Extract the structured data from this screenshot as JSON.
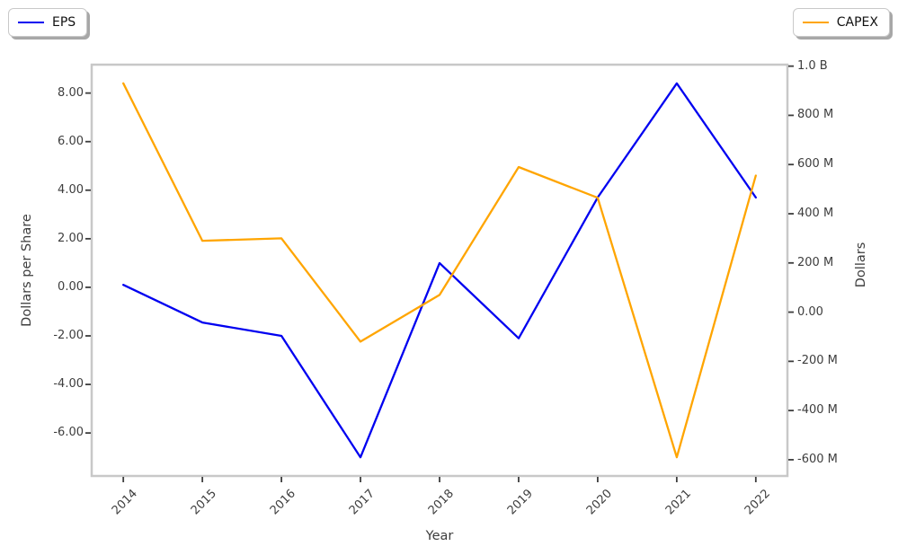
{
  "figure": {
    "background": "#ffffff",
    "frame_color": "#c8c8c8",
    "tick_color": "#3d3d3d",
    "text_color": "#3d3d3d",
    "legends": [
      {
        "label": "EPS",
        "color": "#0000f0",
        "position": "top-left"
      },
      {
        "label": "CAPEX",
        "color": "#ffa500",
        "position": "top-right"
      }
    ]
  },
  "chart_data": {
    "type": "line",
    "title": "",
    "xlabel": "Year",
    "x": [
      2014,
      2015,
      2016,
      2017,
      2018,
      2019,
      2020,
      2021,
      2022
    ],
    "x_tick_labels": [
      "2014",
      "2015",
      "2016",
      "2017",
      "2018",
      "2019",
      "2020",
      "2021",
      "2022"
    ],
    "x_range": [
      2013.6,
      2022.4
    ],
    "series": [
      {
        "name": "EPS",
        "axis": "left",
        "color": "#0000f0",
        "values": [
          0.1,
          -1.45,
          -2.0,
          -7.0,
          1.0,
          -2.1,
          3.7,
          8.4,
          3.7
        ]
      },
      {
        "name": "CAPEX",
        "axis": "right",
        "color": "#ffa500",
        "values_millions": [
          930,
          290,
          300,
          -120,
          70,
          590,
          465,
          -590,
          555
        ]
      }
    ],
    "left_axis": {
      "label": "Dollars per Share",
      "tick_values": [
        8,
        6,
        4,
        2,
        0,
        -2,
        -4,
        -6
      ],
      "tick_labels": [
        "8.00",
        "6.00",
        "4.00",
        "2.00",
        "0.00",
        "-2.00",
        "-4.00",
        "-6.00"
      ],
      "range": [
        -7.77,
        9.17
      ]
    },
    "right_axis": {
      "label": "Dollars",
      "tick_values_millions": [
        1000,
        800,
        600,
        400,
        200,
        0,
        -200,
        -400,
        -600
      ],
      "tick_labels": [
        "1.0 B",
        "800 M",
        "600 M",
        "400 M",
        "200 M",
        "0.00",
        "-200 M",
        "-400 M",
        "-600 M"
      ],
      "range_millions": [
        -666,
        1006
      ]
    },
    "legend_position": "outside-top-corners",
    "grid": false
  }
}
